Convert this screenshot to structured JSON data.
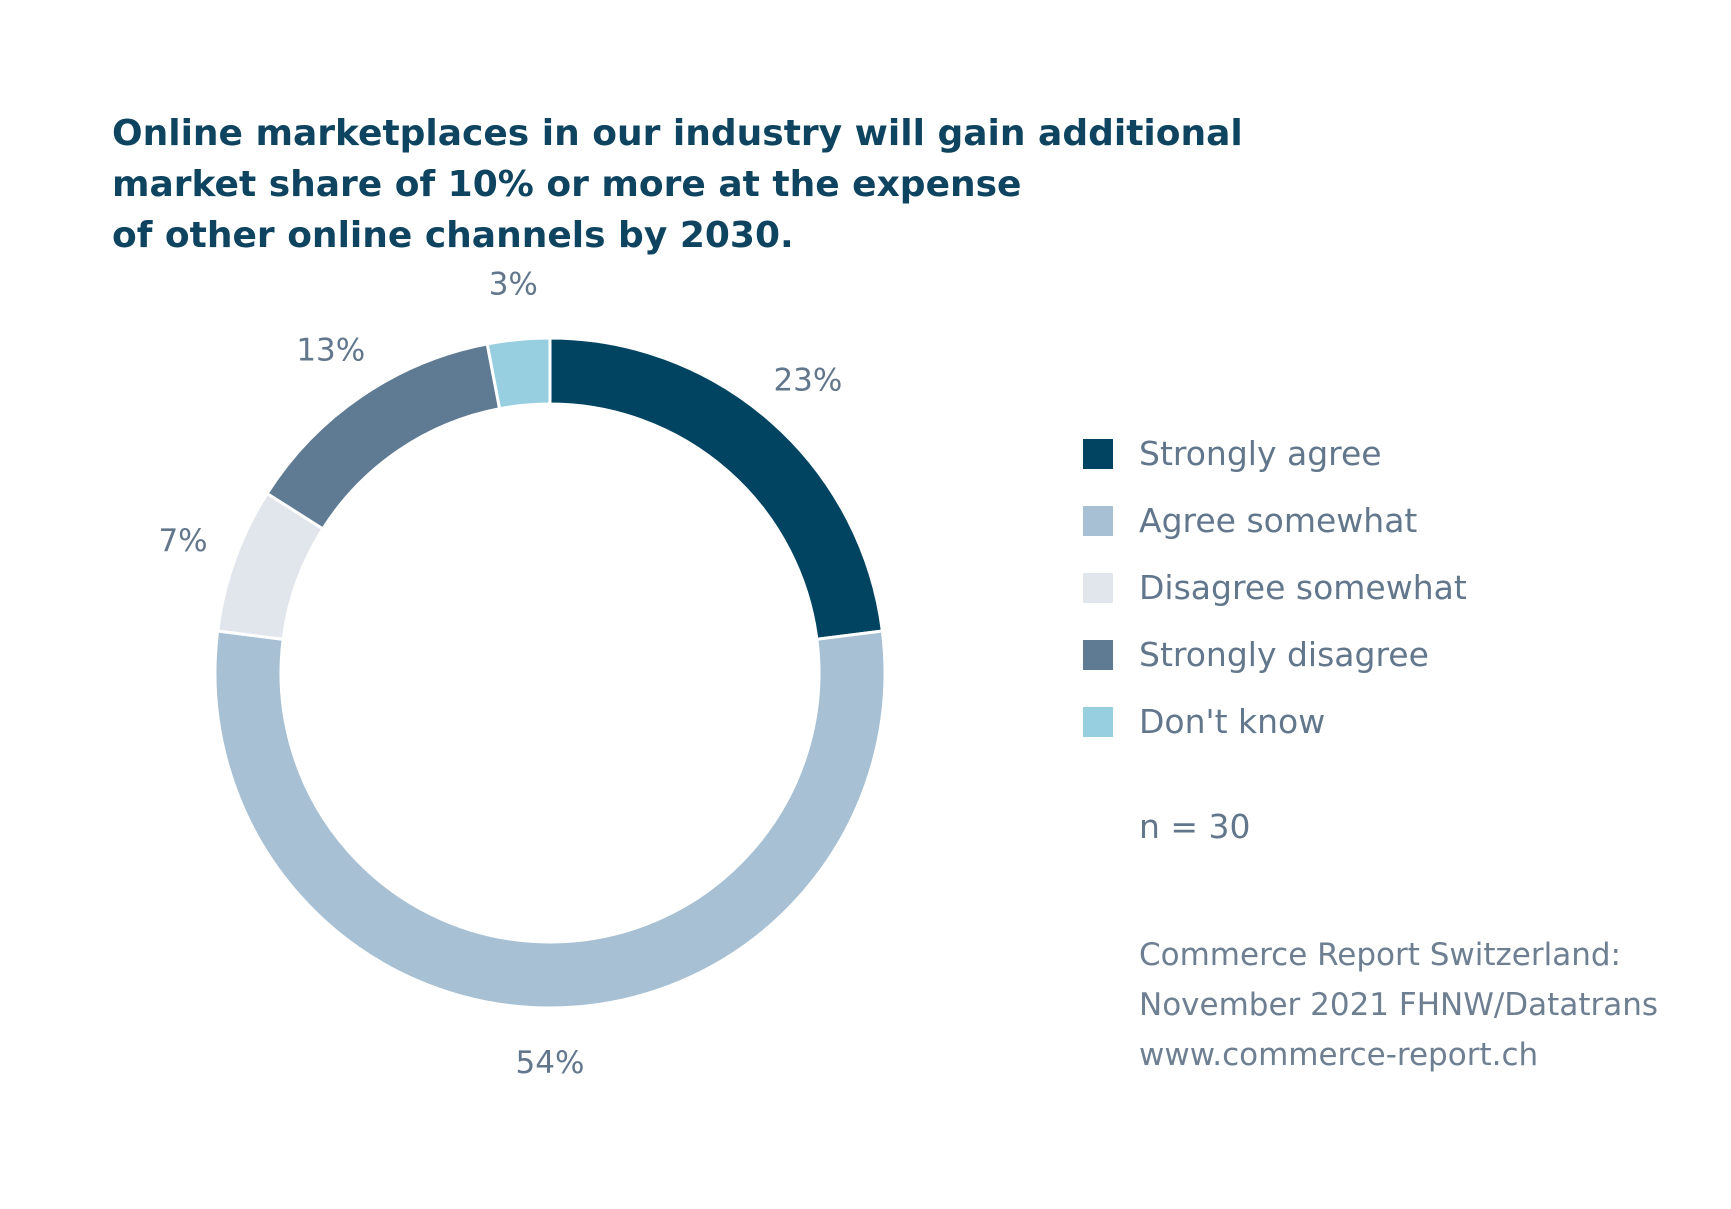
{
  "title_lines": [
    "Online marketplaces in our industry will gain additional",
    "market share of 10% or more at the expense",
    "of other online channels by 2030."
  ],
  "chart_data": {
    "type": "pie",
    "donut": true,
    "title": "Online marketplaces in our industry will gain additional market share of 10% or more at the expense of other online channels by 2030.",
    "categories": [
      "Strongly agree",
      "Agree somewhat",
      "Disagree somewhat",
      "Strongly disagree",
      "Don't know"
    ],
    "values": [
      23,
      54,
      7,
      13,
      3
    ],
    "labels": [
      "23%",
      "54%",
      "7%",
      "13%",
      "3%"
    ],
    "colors": [
      "#004462",
      "#a7c0d3",
      "#e1e6ec",
      "#5f7b94",
      "#97cfe0"
    ],
    "legend_position": "right"
  },
  "legend": [
    {
      "label": "Strongly agree",
      "color": "#004462"
    },
    {
      "label": "Agree somewhat",
      "color": "#a7c0d3"
    },
    {
      "label": "Disagree somewhat",
      "color": "#e1e6ec"
    },
    {
      "label": "Strongly disagree",
      "color": "#5f7b94"
    },
    {
      "label": "Don't know",
      "color": "#97cfe0"
    }
  ],
  "sample_note": "n = 30",
  "source_lines": [
    "Commerce Report Switzerland:",
    "November 2021 FHNW/Datatrans",
    "www.commerce-report.ch"
  ]
}
